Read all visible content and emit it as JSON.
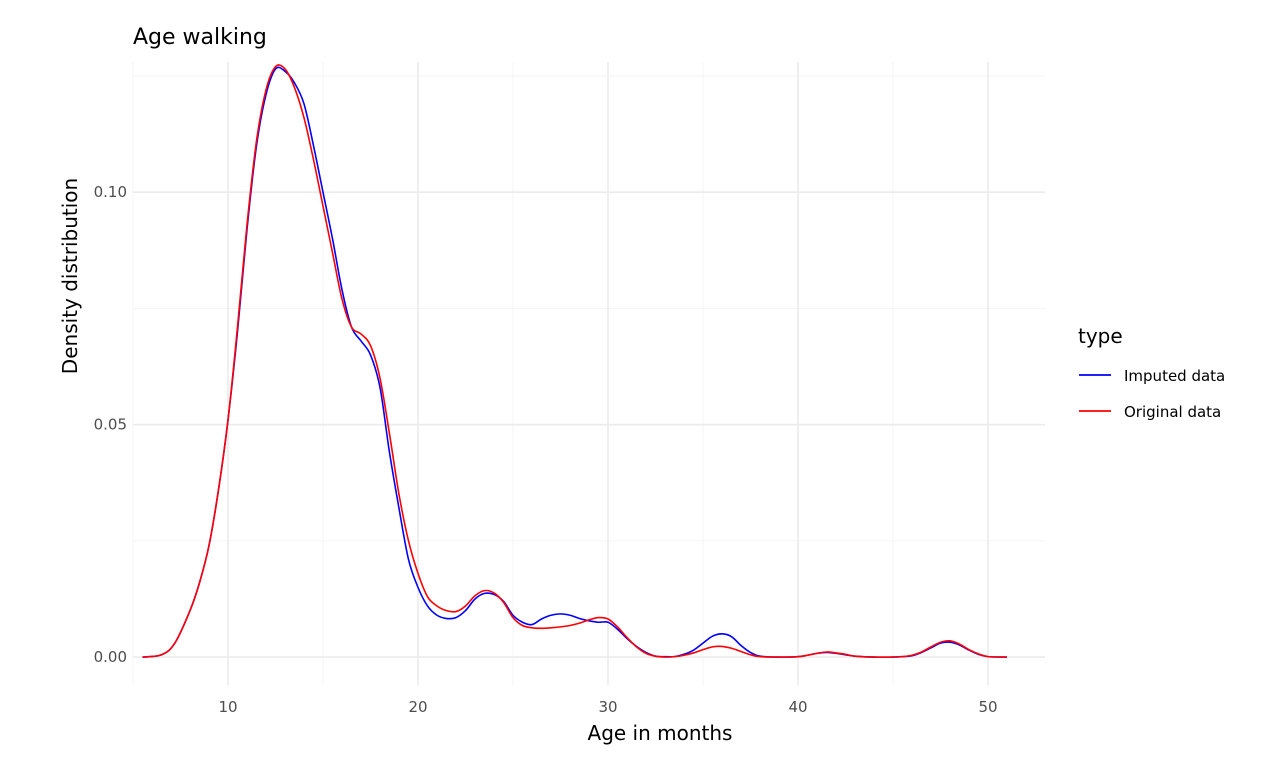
{
  "chart_data": {
    "type": "line",
    "title": "Age walking",
    "xlabel": "Age in months",
    "ylabel": "Density distribution",
    "xlim": [
      5,
      53
    ],
    "ylim": [
      -0.006,
      0.128
    ],
    "x_ticks": [
      10,
      20,
      30,
      40,
      50
    ],
    "x_tick_labels": [
      "10",
      "20",
      "30",
      "40",
      "50"
    ],
    "y_ticks": [
      0.0,
      0.05,
      0.1
    ],
    "y_tick_labels": [
      "0.00",
      "0.05",
      "0.10"
    ],
    "grid": true,
    "legend": {
      "title": "type",
      "position": "right",
      "entries": [
        "Imputed data",
        "Original data"
      ]
    },
    "series": [
      {
        "name": "Imputed data",
        "color": "#0000ff",
        "x": [
          5.5,
          6.5,
          7.2,
          8.0,
          8.5,
          9.0,
          9.5,
          10.0,
          10.5,
          11.0,
          11.5,
          12.0,
          12.5,
          13.0,
          13.5,
          14.0,
          14.5,
          15.0,
          15.5,
          16.0,
          16.5,
          17.0,
          17.5,
          18.0,
          18.5,
          19.0,
          19.5,
          20.0,
          20.5,
          21.0,
          21.5,
          22.0,
          22.5,
          23.0,
          23.5,
          24.0,
          24.5,
          25.0,
          25.5,
          26.0,
          26.5,
          27.0,
          27.5,
          28.0,
          28.5,
          29.0,
          29.5,
          30.0,
          30.5,
          31.0,
          31.5,
          32.0,
          32.5,
          33.0,
          33.5,
          34.0,
          34.5,
          35.0,
          35.5,
          36.0,
          36.5,
          37.0,
          37.5,
          38.0,
          39.0,
          40.0,
          40.5,
          41.0,
          41.5,
          42.0,
          42.5,
          43.0,
          44.0,
          45.0,
          45.5,
          46.0,
          46.5,
          47.0,
          47.5,
          48.0,
          48.5,
          49.0,
          49.5,
          50.0,
          51.0
        ],
        "y": [
          0.0,
          0.0005,
          0.003,
          0.01,
          0.016,
          0.024,
          0.036,
          0.051,
          0.07,
          0.092,
          0.11,
          0.121,
          0.1265,
          0.126,
          0.1235,
          0.119,
          0.11,
          0.1,
          0.09,
          0.079,
          0.071,
          0.068,
          0.065,
          0.058,
          0.044,
          0.032,
          0.021,
          0.015,
          0.011,
          0.009,
          0.0083,
          0.0085,
          0.01,
          0.0125,
          0.0137,
          0.0135,
          0.012,
          0.009,
          0.0075,
          0.007,
          0.0082,
          0.009,
          0.0093,
          0.009,
          0.0083,
          0.0078,
          0.0075,
          0.0075,
          0.006,
          0.004,
          0.0023,
          0.001,
          0.0002,
          0.0001,
          0.0001,
          0.0006,
          0.0015,
          0.003,
          0.0045,
          0.005,
          0.0044,
          0.0025,
          0.001,
          0.0002,
          0.0,
          0.0001,
          0.0004,
          0.0008,
          0.001,
          0.0008,
          0.0005,
          0.0002,
          0.0,
          0.0,
          0.0001,
          0.0003,
          0.001,
          0.002,
          0.003,
          0.0032,
          0.0026,
          0.0015,
          0.0006,
          0.0001,
          0.0
        ]
      },
      {
        "name": "Original data",
        "color": "#ff0000",
        "x": [
          5.5,
          6.5,
          7.2,
          8.0,
          8.5,
          9.0,
          9.5,
          10.0,
          10.5,
          11.0,
          11.5,
          12.0,
          12.5,
          13.0,
          13.5,
          14.0,
          14.5,
          15.0,
          15.5,
          16.0,
          16.5,
          17.0,
          17.5,
          18.0,
          18.5,
          19.0,
          19.5,
          20.0,
          20.5,
          21.0,
          21.5,
          22.0,
          22.5,
          23.0,
          23.5,
          24.0,
          24.5,
          25.0,
          25.5,
          26.0,
          26.5,
          27.0,
          27.5,
          28.0,
          28.5,
          29.0,
          29.5,
          30.0,
          30.5,
          31.0,
          31.5,
          32.0,
          32.5,
          33.0,
          33.5,
          34.0,
          34.5,
          35.0,
          35.5,
          36.0,
          36.5,
          37.0,
          37.5,
          38.0,
          39.0,
          40.0,
          40.5,
          41.0,
          41.5,
          42.0,
          42.5,
          43.0,
          44.0,
          45.0,
          45.5,
          46.0,
          46.5,
          47.0,
          47.5,
          48.0,
          48.5,
          49.0,
          49.5,
          50.0,
          51.0
        ],
        "y": [
          0.0,
          0.0005,
          0.003,
          0.01,
          0.016,
          0.024,
          0.036,
          0.051,
          0.071,
          0.093,
          0.111,
          0.122,
          0.127,
          0.1265,
          0.1225,
          0.116,
          0.107,
          0.097,
          0.087,
          0.077,
          0.071,
          0.0695,
          0.067,
          0.06,
          0.048,
          0.035,
          0.025,
          0.018,
          0.013,
          0.011,
          0.01,
          0.0098,
          0.011,
          0.0132,
          0.0143,
          0.0138,
          0.0118,
          0.0085,
          0.0068,
          0.0063,
          0.0062,
          0.0063,
          0.0065,
          0.0068,
          0.0073,
          0.008,
          0.0085,
          0.0082,
          0.0065,
          0.0042,
          0.0022,
          0.0008,
          0.0002,
          0.0,
          0.0001,
          0.0004,
          0.0009,
          0.0016,
          0.0022,
          0.0023,
          0.0019,
          0.0012,
          0.0005,
          0.0001,
          0.0,
          0.0001,
          0.0004,
          0.0008,
          0.0011,
          0.0009,
          0.0006,
          0.0002,
          0.0,
          0.0,
          0.0001,
          0.0004,
          0.0011,
          0.0022,
          0.0032,
          0.0035,
          0.0028,
          0.0016,
          0.0007,
          0.0001,
          0.0
        ]
      }
    ]
  }
}
